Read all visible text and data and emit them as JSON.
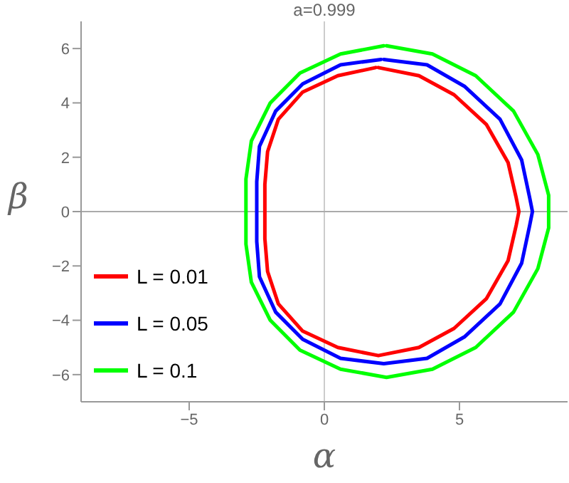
{
  "chart_data": {
    "type": "line",
    "title": "a=0.999",
    "xlabel": "α",
    "ylabel": "β",
    "xlim": [
      -9,
      9
    ],
    "ylim": [
      -7,
      7
    ],
    "xticks": [
      {
        "value": -5,
        "label": "−5"
      },
      0,
      5
    ],
    "yticks": [
      {
        "value": -6,
        "label": "−6"
      },
      {
        "value": -4,
        "label": "−4"
      },
      {
        "value": -2,
        "label": "−2"
      },
      0,
      2,
      4,
      6
    ],
    "grid": false,
    "legend": "bottom left",
    "marker": "none",
    "line_style": "solid",
    "ref_lines": [
      {
        "axis": "x",
        "value": 0,
        "color": "#cccccc"
      },
      {
        "axis": "y",
        "value": 0,
        "color": "#aaaaaa"
      }
    ],
    "series": [
      {
        "name": "L = 0.01",
        "color": "#ff0000",
        "x": [
          2.0,
          3.5,
          4.8,
          6.0,
          6.8,
          7.1,
          7.2,
          7.1,
          6.8,
          6.0,
          4.8,
          3.5,
          2.0,
          0.5,
          -0.8,
          -1.7,
          -2.1,
          -2.2,
          -2.2,
          -2.2,
          -2.1,
          -1.7,
          -0.8,
          0.5,
          1.9
        ],
        "values": [
          5.3,
          5.0,
          4.3,
          3.2,
          1.8,
          0.5,
          0,
          -0.5,
          -1.8,
          -3.2,
          -4.3,
          -5.0,
          -5.3,
          -5.0,
          -4.4,
          -3.4,
          -2.2,
          -1,
          0,
          1,
          2.2,
          3.4,
          4.4,
          5.0,
          5.3
        ]
      },
      {
        "name": "L = 0.05",
        "color": "#0000ff",
        "x": [
          2.2,
          3.8,
          5.2,
          6.5,
          7.3,
          7.6,
          7.7,
          7.6,
          7.3,
          6.5,
          5.2,
          3.8,
          2.2,
          0.6,
          -0.8,
          -1.8,
          -2.4,
          -2.5,
          -2.5,
          -2.5,
          -2.4,
          -1.8,
          -0.8,
          0.6,
          2.1
        ],
        "values": [
          5.6,
          5.4,
          4.6,
          3.4,
          1.9,
          0.5,
          0,
          -0.5,
          -1.9,
          -3.4,
          -4.6,
          -5.4,
          -5.6,
          -5.4,
          -4.7,
          -3.7,
          -2.4,
          -1.1,
          0,
          1.1,
          2.4,
          3.7,
          4.7,
          5.4,
          5.6
        ]
      },
      {
        "name": "L = 0.1",
        "color": "#00ff00",
        "x": [
          2.3,
          4.0,
          5.6,
          7.0,
          7.9,
          8.3,
          8.3,
          8.3,
          7.9,
          7.0,
          5.6,
          4.0,
          2.3,
          0.6,
          -0.9,
          -2.0,
          -2.7,
          -2.9,
          -2.9,
          -2.9,
          -2.7,
          -2.0,
          -0.9,
          0.6,
          2.2
        ],
        "values": [
          6.1,
          5.8,
          5.0,
          3.7,
          2.1,
          0.6,
          0,
          -0.6,
          -2.1,
          -3.7,
          -5.0,
          -5.8,
          -6.1,
          -5.8,
          -5.1,
          -4.0,
          -2.6,
          -1.2,
          0,
          1.2,
          2.6,
          4.0,
          5.1,
          5.8,
          6.1
        ]
      }
    ]
  }
}
